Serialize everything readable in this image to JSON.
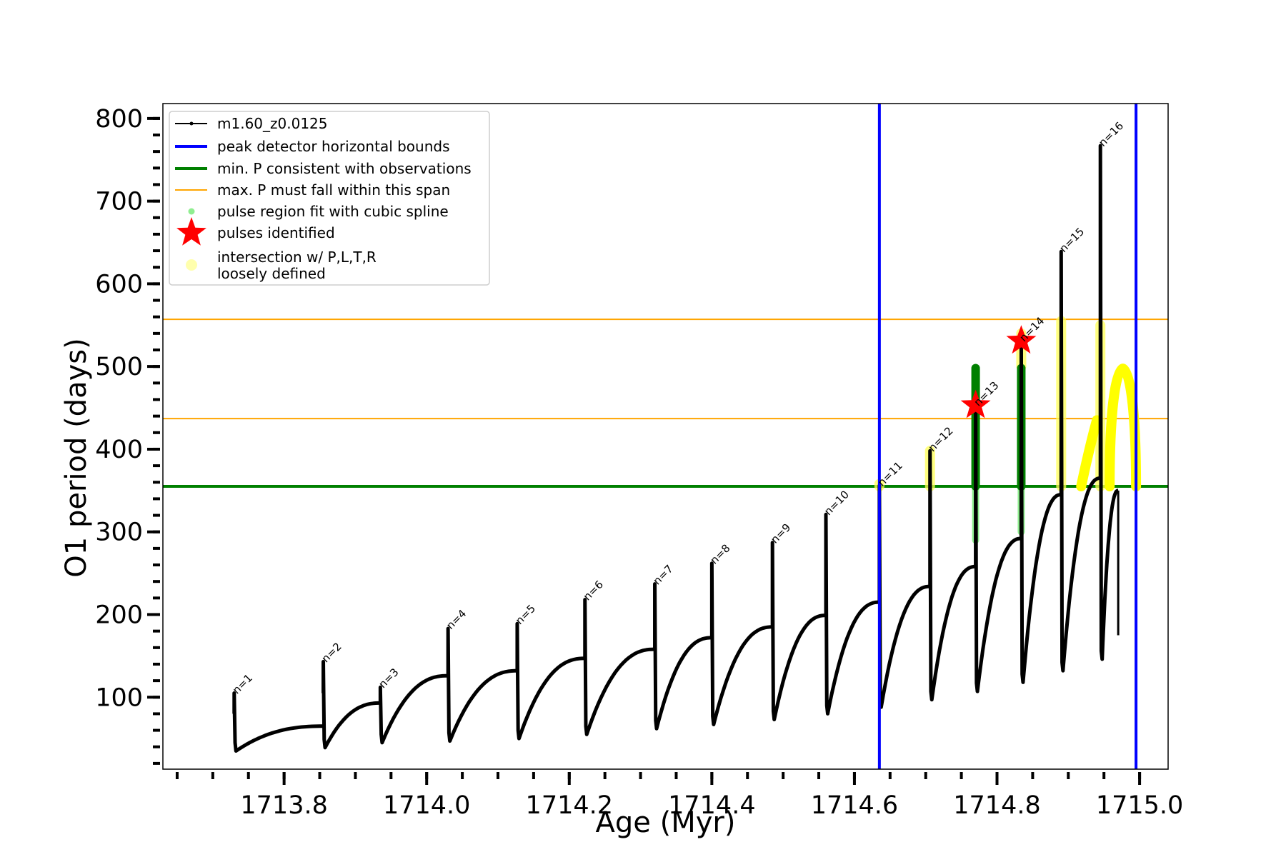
{
  "chart_data": {
    "type": "line",
    "title": "",
    "xlabel": "Age (Myr)",
    "ylabel": "O1 period (days)",
    "xlim": [
      1713.63,
      1715.04
    ],
    "ylim": [
      13,
      818
    ],
    "xticks": [
      1713.8,
      1714.0,
      1714.2,
      1714.4,
      1714.6,
      1714.8,
      1715.0
    ],
    "xtick_labels": [
      "1713.8",
      "1714.0",
      "1714.2",
      "1714.4",
      "1714.6",
      "1714.8",
      "1715.0"
    ],
    "yticks": [
      100,
      200,
      300,
      400,
      500,
      600,
      700,
      800
    ],
    "ytick_labels": [
      "100",
      "200",
      "300",
      "400",
      "500",
      "600",
      "700",
      "800"
    ],
    "grid": false,
    "legend_position": "top-left",
    "legend": [
      {
        "label": "m1.60_z0.0125",
        "kind": "line-dot",
        "color": "#000000"
      },
      {
        "label": "peak detector horizontal bounds",
        "kind": "line",
        "color": "#0000ff"
      },
      {
        "label": "min. P consistent with observations",
        "kind": "line",
        "color": "#008000"
      },
      {
        "label": "max. P must fall within this span",
        "kind": "line-thin",
        "color": "#ffa500"
      },
      {
        "label": "pulse region fit with cubic spline",
        "kind": "dot",
        "color": "#90ee90"
      },
      {
        "label": "pulses identified",
        "kind": "star",
        "color": "#ff0000"
      },
      {
        "label": [
          "intersection w/ P,L,T,R",
          "loosely defined"
        ],
        "kind": "dot-large",
        "color": "#ffff99"
      }
    ],
    "vertical_lines": [
      1714.635,
      1714.995
    ],
    "min_period": 355,
    "max_period_span": [
      437,
      557
    ],
    "series": [
      {
        "name": "m1.60_z0.0125",
        "color": "#000000",
        "pulses": [
          {
            "label": "n=1",
            "x": 1713.73,
            "peak": 105,
            "min": 35,
            "pre": 80,
            "end": 65,
            "next": 1713.855
          },
          {
            "label": "n=2",
            "x": 1713.855,
            "peak": 143,
            "min": 39,
            "pre": 105,
            "end": 93,
            "next": 1713.935
          },
          {
            "label": "n=3",
            "x": 1713.935,
            "peak": 112,
            "min": 45,
            "pre": 93,
            "end": 126,
            "next": 1714.03
          },
          {
            "label": "n=4",
            "x": 1714.03,
            "peak": 183,
            "min": 47,
            "pre": 126,
            "end": 132,
            "next": 1714.127
          },
          {
            "label": "n=5",
            "x": 1714.127,
            "peak": 189,
            "min": 50,
            "pre": 132,
            "end": 147,
            "next": 1714.222
          },
          {
            "label": "n=6",
            "x": 1714.222,
            "peak": 218,
            "min": 55,
            "pre": 147,
            "end": 158,
            "next": 1714.32
          },
          {
            "label": "n=7",
            "x": 1714.32,
            "peak": 237,
            "min": 62,
            "pre": 158,
            "end": 172,
            "next": 1714.4
          },
          {
            "label": "n=8",
            "x": 1714.4,
            "peak": 262,
            "min": 67,
            "pre": 172,
            "end": 185,
            "next": 1714.485
          },
          {
            "label": "n=9",
            "x": 1714.485,
            "peak": 287,
            "min": 73,
            "pre": 185,
            "end": 199,
            "next": 1714.56
          },
          {
            "label": "n=10",
            "x": 1714.56,
            "peak": 321,
            "min": 80,
            "pre": 199,
            "end": 215,
            "next": 1714.635
          },
          {
            "label": "n=11",
            "x": 1714.635,
            "peak": 356,
            "min": 88,
            "pre": 215,
            "end": 234,
            "next": 1714.706
          },
          {
            "label": "n=12",
            "x": 1714.706,
            "peak": 398,
            "min": 97,
            "pre": 234,
            "end": 258,
            "next": 1714.77
          },
          {
            "label": "n=13",
            "x": 1714.77,
            "peak": 453,
            "min": 107,
            "pre": 258,
            "end": 292,
            "next": 1714.834
          },
          {
            "label": "n=14",
            "x": 1714.834,
            "peak": 531,
            "min": 118,
            "pre": 292,
            "end": 345,
            "next": 1714.89
          },
          {
            "label": "n=15",
            "x": 1714.89,
            "peak": 639,
            "min": 132,
            "pre": 345,
            "end": 365,
            "next": 1714.945
          },
          {
            "label": "n=16",
            "x": 1714.945,
            "peak": 767,
            "min": 146,
            "pre": 365,
            "end": 350,
            "next": 1714.97
          }
        ]
      }
    ],
    "spline_regions": [
      {
        "x": 1714.77,
        "y_range": [
          290,
          498
        ]
      },
      {
        "x": 1714.834,
        "y_range": [
          300,
          498
        ]
      }
    ],
    "pulses_identified": [
      {
        "x": 1714.77,
        "y": 453
      },
      {
        "x": 1714.834,
        "y": 531
      }
    ],
    "loosely_defined": [
      {
        "x": 1714.635,
        "y_range": [
          355,
          358
        ]
      },
      {
        "x": 1714.706,
        "y_range": [
          355,
          398
        ]
      },
      {
        "x": 1714.834,
        "y_range": [
          500,
          540
        ]
      },
      {
        "x": 1714.89,
        "y_range": [
          355,
          555
        ]
      },
      {
        "x": 1714.945,
        "y_range": [
          355,
          550
        ]
      }
    ],
    "loosely_defined_arcs": [
      {
        "from": [
          1714.918,
          355
        ],
        "to": [
          1714.94,
          435
        ]
      },
      {
        "from": [
          1714.958,
          355
        ],
        "peak": [
          1714.973,
          465
        ],
        "to": [
          1714.995,
          355
        ]
      }
    ]
  }
}
